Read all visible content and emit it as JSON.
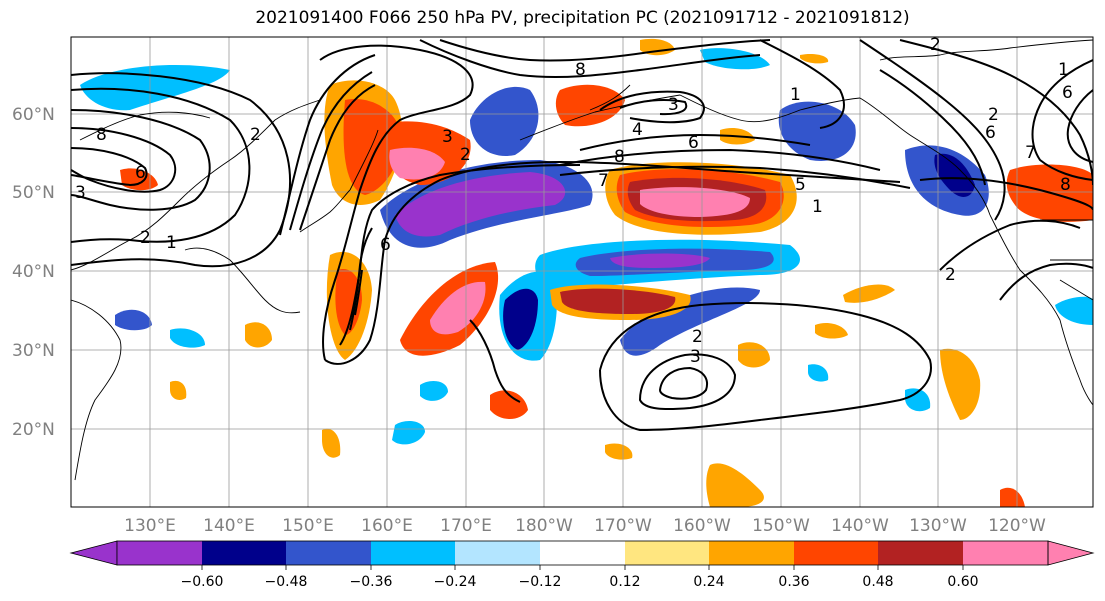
{
  "title": "2021091400 F066 250 hPa PV, precipitation PC (2021091712 - 2021091812)",
  "lat_labels": [
    "60°N",
    "50°N",
    "40°N",
    "30°N",
    "20°N"
  ],
  "lon_labels": [
    "130°E",
    "140°E",
    "150°E",
    "160°E",
    "170°E",
    "180°W",
    "170°W",
    "160°W",
    "150°W",
    "140°W",
    "130°W",
    "120°W"
  ],
  "colorbar": {
    "ticks": [
      "−0.60",
      "−0.48",
      "−0.36",
      "−0.24",
      "−0.12",
      "0.12",
      "0.24",
      "0.36",
      "0.48",
      "0.60"
    ],
    "colors": [
      "#9933cc",
      "#00008b",
      "#3355cc",
      "#00bfff",
      "#b3e5ff",
      "#ffffff",
      "#ffe680",
      "#ffa500",
      "#ff4500",
      "#b22222",
      "#ff80b0"
    ]
  },
  "contour_labels": [
    "8",
    "6",
    "2",
    "1",
    "3",
    "8",
    "7",
    "6",
    "3",
    "4",
    "6",
    "1",
    "2",
    "1",
    "2",
    "6",
    "3",
    "8",
    "2",
    "2",
    "3",
    "5",
    "6",
    "7",
    "8",
    "2",
    "2",
    "1"
  ]
}
